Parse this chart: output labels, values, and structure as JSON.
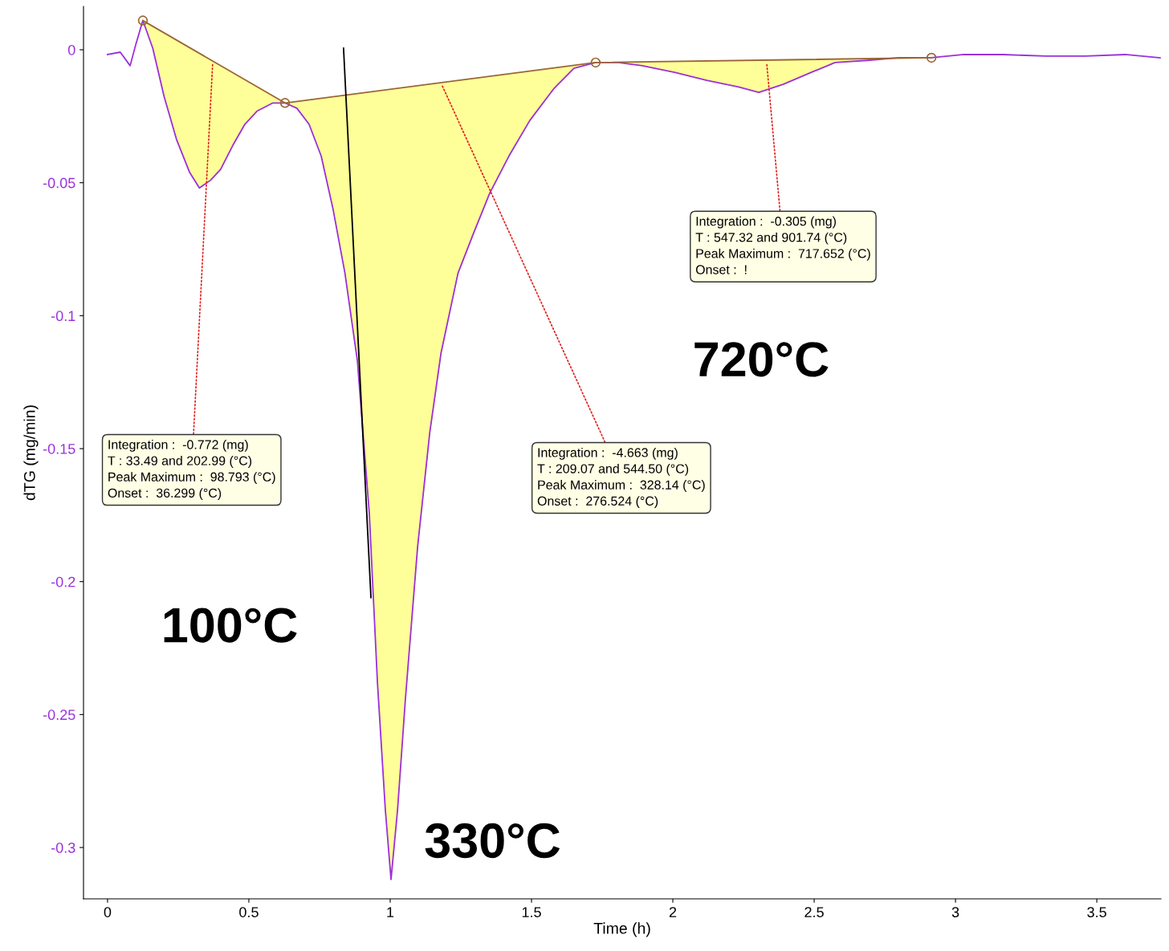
{
  "chart_data": {
    "type": "line",
    "xlabel": "Time (h)",
    "ylabel": "dTG (mg/min)",
    "xlim": [
      -0.085,
      3.727
    ],
    "ylim": [
      -0.3193,
      0.0163
    ],
    "xticks": [
      0,
      0.5,
      1,
      1.5,
      2,
      2.5,
      3,
      3.5
    ],
    "yticks": [
      0,
      -0.05,
      -0.1,
      -0.15,
      -0.2,
      -0.25,
      -0.3
    ],
    "grid": false,
    "legend": false,
    "series": [
      {
        "type": "line",
        "color": "#9b30d9",
        "x": [
          0,
          0.045,
          0.08,
          0.1,
          0.125,
          0.16,
          0.2,
          0.245,
          0.29,
          0.325,
          0.365,
          0.4,
          0.443,
          0.486,
          0.53,
          0.585,
          0.628,
          0.67,
          0.713,
          0.756,
          0.798,
          0.84,
          0.884,
          0.926,
          0.955,
          0.983,
          1.003,
          1.026,
          1.054,
          1.097,
          1.14,
          1.18,
          1.24,
          1.295,
          1.352,
          1.42,
          1.494,
          1.58,
          1.65,
          1.727,
          1.807,
          1.892,
          2.006,
          2.12,
          2.233,
          2.304,
          2.39,
          2.49,
          2.574,
          2.688,
          2.8,
          2.915,
          3.03,
          3.17,
          3.32,
          3.46,
          3.6,
          3.724
        ],
        "values": [
          -0.0018,
          -0.0009,
          -0.006,
          0.002,
          0.011,
          0.0006,
          -0.0175,
          -0.034,
          -0.046,
          -0.052,
          -0.049,
          -0.045,
          -0.036,
          -0.028,
          -0.023,
          -0.02,
          -0.02,
          -0.022,
          -0.028,
          -0.04,
          -0.06,
          -0.084,
          -0.117,
          -0.174,
          -0.238,
          -0.286,
          -0.312,
          -0.286,
          -0.244,
          -0.187,
          -0.144,
          -0.114,
          -0.084,
          -0.069,
          -0.054,
          -0.04,
          -0.0266,
          -0.0145,
          -0.007,
          -0.0048,
          -0.0048,
          -0.006,
          -0.0085,
          -0.0115,
          -0.014,
          -0.016,
          -0.013,
          -0.0085,
          -0.0048,
          -0.004,
          -0.003,
          -0.003,
          -0.0018,
          -0.0018,
          -0.0024,
          -0.0024,
          -0.0018,
          -0.003
        ],
        "lower": [
          null,
          null,
          null,
          null,
          0.011,
          0.0006,
          -0.0175,
          -0.034,
          -0.046,
          -0.052,
          -0.049,
          -0.045,
          -0.036,
          -0.028,
          -0.023,
          -0.02,
          -0.02,
          -0.022,
          -0.028,
          -0.04,
          -0.06,
          -0.084,
          -0.117,
          -0.174,
          -0.238,
          -0.286,
          -0.312,
          -0.286,
          -0.244,
          -0.187,
          -0.144,
          -0.114,
          -0.084,
          -0.069,
          -0.054,
          -0.04,
          -0.0266,
          -0.0145,
          -0.007,
          -0.0048,
          -0.0048,
          -0.006,
          -0.0085,
          -0.0115,
          -0.014,
          -0.016,
          -0.013,
          -0.0085,
          -0.0048,
          -0.004,
          -0.003,
          -0.003,
          null,
          null,
          null,
          null,
          null,
          null
        ],
        "upper": [
          null,
          null,
          null,
          null,
          0.011,
          0.0088,
          0.0064,
          0.0036,
          0.0008,
          -0.0013,
          -0.0037,
          -0.0058,
          -0.0084,
          -0.0113,
          -0.014,
          -0.0174,
          -0.02,
          -0.0194,
          -0.0188,
          -0.0182,
          -0.0176,
          -0.0171,
          -0.0165,
          -0.0159,
          -0.0155,
          -0.0151,
          -0.0148,
          -0.0145,
          -0.0141,
          -0.0135,
          -0.0129,
          -0.0124,
          -0.0115,
          -0.0108,
          -0.01,
          -0.009,
          -0.008,
          -0.0068,
          -0.0059,
          -0.0048,
          -0.0047,
          -0.0045,
          -0.0044,
          -0.0042,
          -0.004,
          -0.0039,
          -0.0038,
          -0.0036,
          -0.0035,
          -0.0033,
          -0.0032,
          -0.003,
          null,
          null,
          null,
          null,
          null,
          null
        ]
      },
      {
        "type": "line",
        "color": "#996633",
        "marker": "circle",
        "x": [
          0.125,
          0.628,
          1.727,
          2.915
        ],
        "values": [
          0.011,
          -0.02,
          -0.0048,
          -0.003
        ]
      },
      {
        "type": "line",
        "color": "#000000",
        "x": [
          0.835,
          0.932
        ],
        "values": [
          0.0006,
          -0.206
        ]
      }
    ],
    "annotations": [
      {
        "text": "Integration :  -0.772 (mg)\nT : 33.49 and 202.99 (°C)\nPeak Maximum :  98.793 (°C)\nOnset :  36.299 (°C)",
        "x": 0.372,
        "y": -0.005
      },
      {
        "text": "Integration :  -4.663 (mg)\nT : 209.07 and 544.50 (°C)\nPeak Maximum :  328.14 (°C)\nOnset :  276.524 (°C)",
        "x": 1.182,
        "y": -0.013
      },
      {
        "text": "Integration :  -0.305 (mg)\nT : 547.32 and 901.74 (°C)\nPeak Maximum :  717.652 (°C)\nOnset :  !",
        "x": 2.332,
        "y": -0.0048
      },
      "100°C",
      "330°C",
      "720°C"
    ]
  }
}
